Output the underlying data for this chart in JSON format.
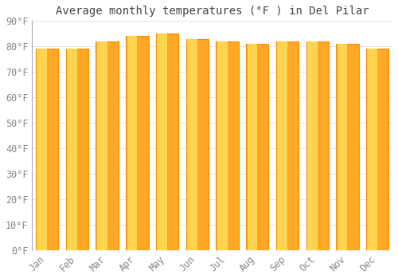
{
  "title": "Average monthly temperatures (°F ) in Del Pilar",
  "months": [
    "Jan",
    "Feb",
    "Mar",
    "Apr",
    "May",
    "Jun",
    "Jul",
    "Aug",
    "Sep",
    "Oct",
    "Nov",
    "Dec"
  ],
  "values": [
    79,
    79,
    82,
    84,
    85,
    83,
    82,
    81,
    82,
    82,
    81,
    79
  ],
  "bar_color_main": "#FFA726",
  "bar_color_light": "#FFD54F",
  "bar_edge_color": "#FB8C00",
  "background_color": "#FFFFFF",
  "plot_bg_color": "#FFFFFF",
  "ylim": [
    0,
    90
  ],
  "yticks": [
    0,
    10,
    20,
    30,
    40,
    50,
    60,
    70,
    80,
    90
  ],
  "ytick_labels": [
    "0°F",
    "10°F",
    "20°F",
    "30°F",
    "40°F",
    "50°F",
    "60°F",
    "70°F",
    "80°F",
    "90°F"
  ],
  "grid_color": "#DDDDDD",
  "title_fontsize": 10,
  "tick_fontsize": 8.5,
  "bar_width": 0.75
}
